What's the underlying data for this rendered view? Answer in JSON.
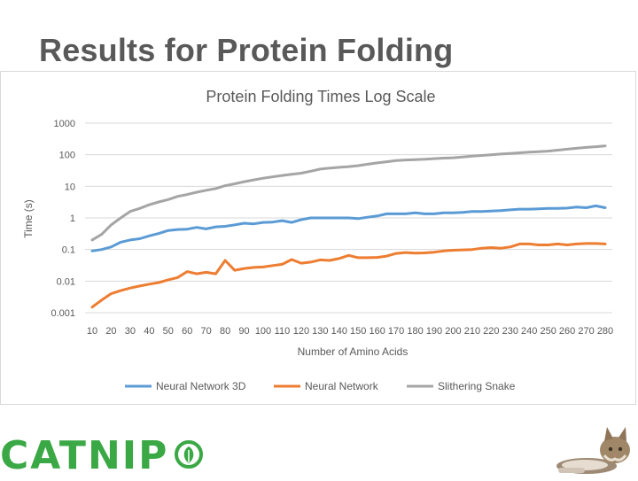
{
  "slide": {
    "title": "Results for Protein Folding"
  },
  "brand": {
    "name": "CATNIP"
  },
  "colors": {
    "nn3d": "#5b9bd5",
    "nn": "#ed7d31",
    "snake": "#a5a5a5",
    "brand": "#3aa845"
  },
  "icons": {
    "brand_mark": "leaf-circle-icon",
    "mascot": "cat-icon"
  },
  "chart_data": {
    "type": "line",
    "title": "Protein Folding Times Log Scale",
    "xlabel": "Number of Amino Acids",
    "ylabel": "Time (s)",
    "yscale": "log",
    "ylim": [
      0.001,
      1000
    ],
    "yticks": [
      "1000",
      "100",
      "10",
      "1",
      "0.1",
      "0.01",
      "0.001"
    ],
    "x": [
      10,
      15,
      20,
      25,
      30,
      35,
      40,
      45,
      50,
      55,
      60,
      65,
      70,
      75,
      80,
      85,
      90,
      95,
      100,
      105,
      110,
      115,
      120,
      125,
      130,
      135,
      140,
      145,
      150,
      155,
      160,
      165,
      170,
      175,
      180,
      185,
      190,
      195,
      200,
      205,
      210,
      215,
      220,
      225,
      230,
      235,
      240,
      245,
      250,
      255,
      260,
      265,
      270,
      275,
      280
    ],
    "xtick_labels": [
      "10",
      "20",
      "30",
      "40",
      "50",
      "60",
      "70",
      "80",
      "90",
      "100",
      "110",
      "120",
      "130",
      "140",
      "150",
      "160",
      "170",
      "180",
      "190",
      "200",
      "210",
      "220",
      "230",
      "240",
      "250",
      "260",
      "270",
      "280"
    ],
    "legend_position": "bottom",
    "grid": true,
    "series": [
      {
        "name": "Neural Network 3D",
        "color": "#5b9bd5",
        "values": [
          0.09,
          0.1,
          0.12,
          0.17,
          0.2,
          0.22,
          0.27,
          0.32,
          0.4,
          0.43,
          0.44,
          0.5,
          0.45,
          0.52,
          0.54,
          0.6,
          0.68,
          0.65,
          0.72,
          0.74,
          0.82,
          0.72,
          0.88,
          1.0,
          1.0,
          1.0,
          1.0,
          1.0,
          0.95,
          1.05,
          1.15,
          1.35,
          1.35,
          1.35,
          1.45,
          1.35,
          1.35,
          1.45,
          1.45,
          1.5,
          1.6,
          1.6,
          1.65,
          1.7,
          1.8,
          1.9,
          1.9,
          1.95,
          2.0,
          2.0,
          2.05,
          2.2,
          2.1,
          2.4,
          2.1
        ]
      },
      {
        "name": "Neural Network",
        "color": "#ed7d31",
        "values": [
          0.0015,
          0.0025,
          0.004,
          0.005,
          0.006,
          0.007,
          0.008,
          0.009,
          0.011,
          0.013,
          0.02,
          0.017,
          0.019,
          0.017,
          0.045,
          0.022,
          0.025,
          0.027,
          0.028,
          0.031,
          0.034,
          0.048,
          0.037,
          0.04,
          0.047,
          0.045,
          0.052,
          0.065,
          0.055,
          0.055,
          0.056,
          0.062,
          0.075,
          0.08,
          0.077,
          0.078,
          0.082,
          0.09,
          0.095,
          0.097,
          0.1,
          0.11,
          0.115,
          0.11,
          0.12,
          0.15,
          0.15,
          0.14,
          0.14,
          0.15,
          0.14,
          0.15,
          0.155,
          0.155,
          0.15
        ]
      },
      {
        "name": "Slithering Snake",
        "color": "#a5a5a5",
        "values": [
          0.2,
          0.3,
          0.6,
          1.0,
          1.6,
          2.0,
          2.6,
          3.2,
          3.8,
          4.8,
          5.5,
          6.5,
          7.5,
          8.5,
          10.5,
          12,
          14,
          16,
          18,
          20,
          22,
          24,
          26,
          30,
          35,
          38,
          40,
          42,
          45,
          50,
          55,
          60,
          65,
          68,
          70,
          72,
          75,
          78,
          80,
          85,
          90,
          95,
          100,
          105,
          110,
          115,
          120,
          125,
          130,
          140,
          150,
          160,
          170,
          180,
          190
        ]
      }
    ]
  }
}
